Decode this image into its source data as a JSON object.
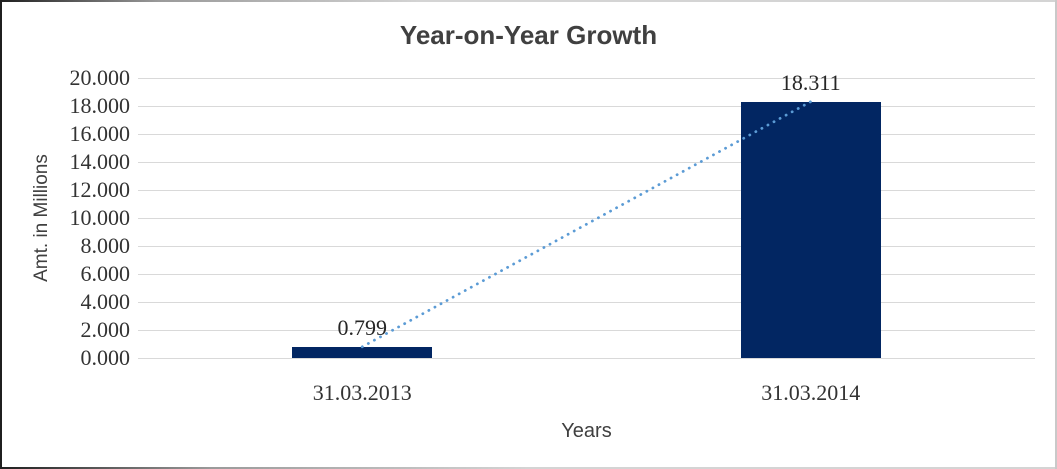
{
  "chart_data": {
    "type": "bar",
    "title": "Year-on-Year Growth",
    "xlabel": "Years",
    "ylabel": "Amt. in Millions",
    "categories": [
      "31.03.2013",
      "31.03.2014"
    ],
    "values": [
      0.799,
      18.311
    ],
    "data_labels": [
      "0.799",
      "18.311"
    ],
    "ylim": [
      0,
      20
    ],
    "ytick_interval": 2,
    "ytick_labels": [
      "0.000",
      "2.000",
      "4.000",
      "6.000",
      "8.000",
      "10.000",
      "12.000",
      "14.000",
      "16.000",
      "18.000",
      "20.000"
    ],
    "grid": true,
    "legend": false,
    "trendline": {
      "style": "dotted",
      "from": "31.03.2013",
      "to": "31.03.2014"
    },
    "colors": {
      "bar": "#022662",
      "trendline": "#5b9bd5",
      "gridline": "#d9d9d9",
      "title_text": "#404040",
      "tick_text": "#333333"
    }
  }
}
